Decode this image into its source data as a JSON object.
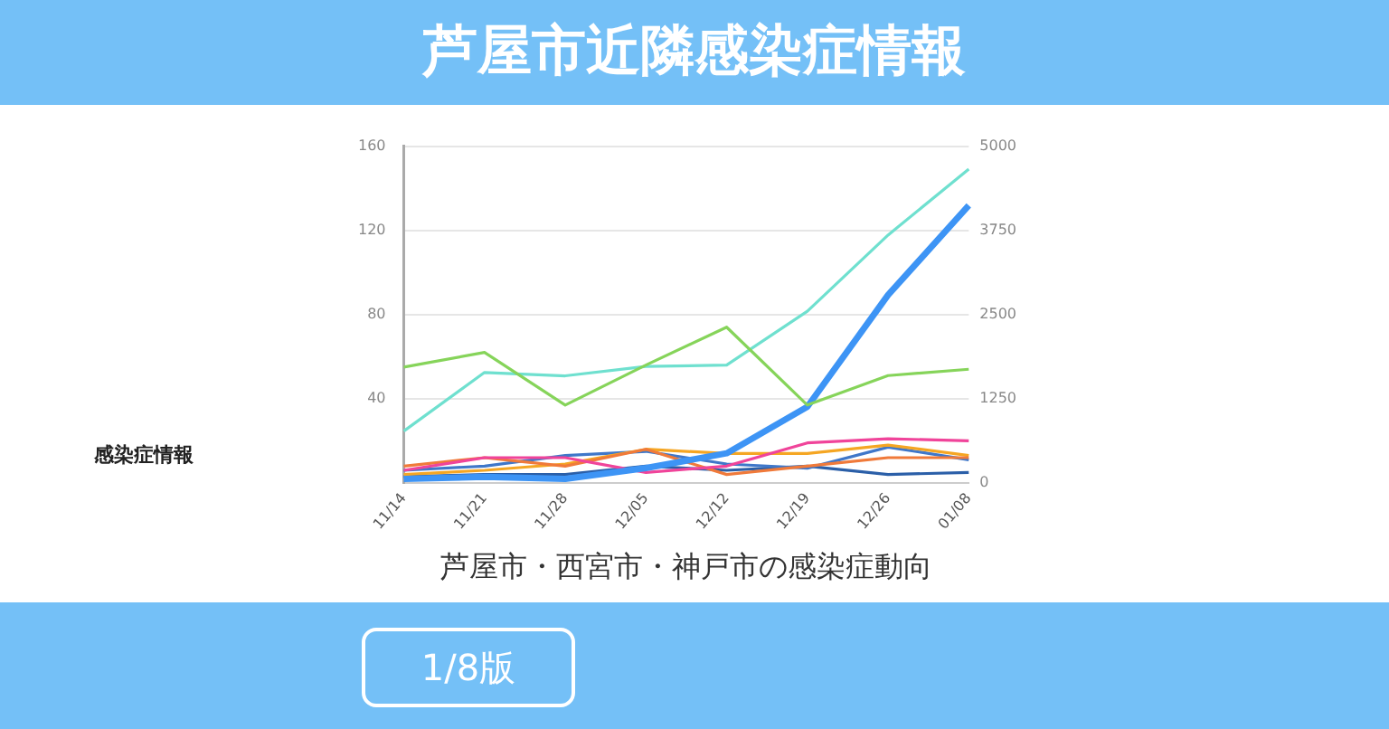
{
  "chart_data": {
    "type": "line",
    "title": "芦屋市近隣感染症情報",
    "xlabel": "芦屋市・西宮市・神戸市の感染症動向",
    "annotations": [
      "感染症情報",
      "1/8版"
    ],
    "categories": [
      "11/14",
      "11/21",
      "11/28",
      "12/05",
      "12/12",
      "12/19",
      "12/26",
      "01/08"
    ],
    "series": [
      {
        "color": "#86d45a",
        "values": [
          55,
          62,
          37,
          56,
          74,
          37,
          51,
          54
        ]
      },
      {
        "color": "#6fe0cf",
        "axis": "y2",
        "values": [
          770,
          1640,
          1590,
          1730,
          1750,
          2550,
          3680,
          4660
        ]
      },
      {
        "color": "#3d94f5",
        "axis": "y2",
        "values": [
          60,
          90,
          60,
          220,
          440,
          1130,
          2790,
          4120
        ]
      },
      {
        "color": "#f0449a",
        "values": [
          6,
          12,
          12,
          5,
          8,
          19,
          21,
          20
        ]
      },
      {
        "color": "#f07a3a",
        "values": [
          8,
          12,
          8,
          16,
          4,
          8,
          12,
          12
        ]
      },
      {
        "color": "#f5a623",
        "values": [
          4,
          6,
          9,
          16,
          14,
          14,
          18,
          13
        ]
      },
      {
        "color": "#3f77c9",
        "values": [
          6,
          8,
          13,
          15,
          9,
          7,
          17,
          11
        ]
      },
      {
        "color": "#2b5fa8",
        "values": [
          3,
          4,
          4,
          8,
          6,
          8,
          4,
          5
        ]
      }
    ],
    "ylim": [
      0,
      160
    ],
    "yticks": [
      40,
      80,
      120,
      160
    ],
    "y2lim": [
      0,
      5000
    ],
    "y2ticks": [
      0,
      1250,
      2500,
      3750,
      5000
    ],
    "grid": "y",
    "legend": false,
    "marker": "none"
  }
}
